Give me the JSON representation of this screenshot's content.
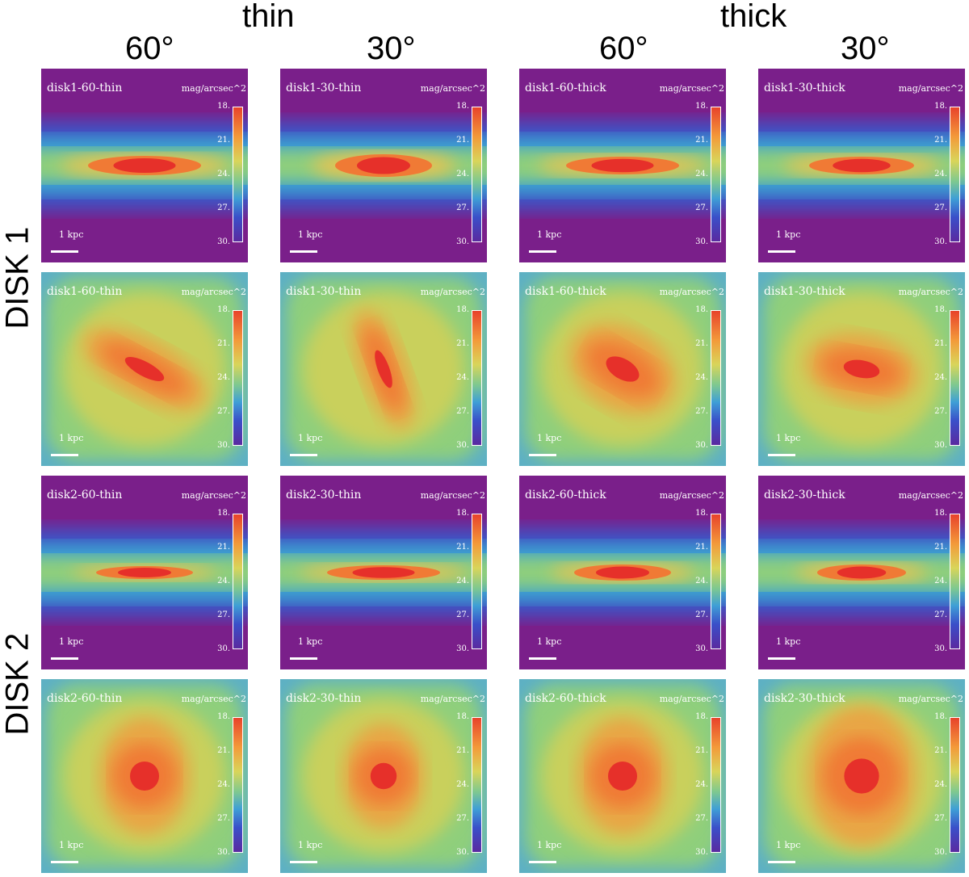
{
  "headers": {
    "thin": "thin",
    "thick": "thick",
    "angles": [
      "60°",
      "30°",
      "60°",
      "30°"
    ]
  },
  "row_labels": {
    "disk1": "DISK 1",
    "disk2": "DISK 2"
  },
  "colorbar": {
    "unit": "mag/arcsec^2",
    "ticks": [
      "18.",
      "21.",
      "24.",
      "27.",
      "30."
    ],
    "colors": {
      "bright": "#e8432b",
      "faint": "#5a2aa0",
      "background": "#7a1f8a"
    }
  },
  "scale_bar": "1 kpc",
  "panels": [
    [
      "disk1-60-thin",
      "disk1-30-thin",
      "disk1-60-thick",
      "disk1-30-thick"
    ],
    [
      "disk1-60-thin",
      "disk1-30-thin",
      "disk1-60-thick",
      "disk1-30-thick"
    ],
    [
      "disk2-60-thin",
      "disk2-30-thin",
      "disk2-60-thick",
      "disk2-30-thick"
    ],
    [
      "disk2-60-thin",
      "disk2-30-thin",
      "disk2-60-thick",
      "disk2-30-thick"
    ]
  ]
}
